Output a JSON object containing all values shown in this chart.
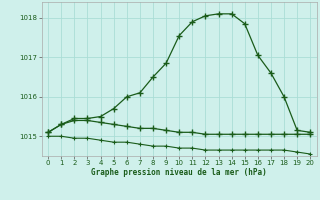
{
  "xlabel": "Graphe pression niveau de la mer (hPa)",
  "background_color": "#cff0eb",
  "grid_color": "#aaddd6",
  "line_color": "#1a5c1a",
  "xlim": [
    -0.5,
    20.5
  ],
  "ylim": [
    1014.5,
    1018.4
  ],
  "yticks": [
    1015,
    1016,
    1017,
    1018
  ],
  "xticks": [
    0,
    1,
    2,
    3,
    4,
    5,
    6,
    7,
    8,
    9,
    10,
    11,
    12,
    13,
    14,
    15,
    16,
    17,
    18,
    19,
    20
  ],
  "series1_x": [
    0,
    1,
    2,
    3,
    4,
    5,
    6,
    7,
    8,
    9,
    10,
    11,
    12,
    13,
    14,
    15,
    16,
    17,
    18,
    19,
    20
  ],
  "series1_y": [
    1015.1,
    1015.3,
    1015.45,
    1015.45,
    1015.5,
    1015.7,
    1016.0,
    1016.1,
    1016.5,
    1016.85,
    1017.55,
    1017.9,
    1018.05,
    1018.1,
    1018.1,
    1017.85,
    1017.05,
    1016.6,
    1016.0,
    1015.15,
    1015.1
  ],
  "series2_x": [
    0,
    1,
    2,
    3,
    4,
    5,
    6,
    7,
    8,
    9,
    10,
    11,
    12,
    13,
    14,
    15,
    16,
    17,
    18,
    19,
    20
  ],
  "series2_y": [
    1015.1,
    1015.3,
    1015.4,
    1015.4,
    1015.35,
    1015.3,
    1015.25,
    1015.2,
    1015.2,
    1015.15,
    1015.1,
    1015.1,
    1015.05,
    1015.05,
    1015.05,
    1015.05,
    1015.05,
    1015.05,
    1015.05,
    1015.05,
    1015.05
  ],
  "series3_x": [
    0,
    1,
    2,
    3,
    4,
    5,
    6,
    7,
    8,
    9,
    10,
    11,
    12,
    13,
    14,
    15,
    16,
    17,
    18,
    19,
    20
  ],
  "series3_y": [
    1015.0,
    1015.0,
    1014.95,
    1014.95,
    1014.9,
    1014.85,
    1014.85,
    1014.8,
    1014.75,
    1014.75,
    1014.7,
    1014.7,
    1014.65,
    1014.65,
    1014.65,
    1014.65,
    1014.65,
    1014.65,
    1014.65,
    1014.6,
    1014.55
  ]
}
